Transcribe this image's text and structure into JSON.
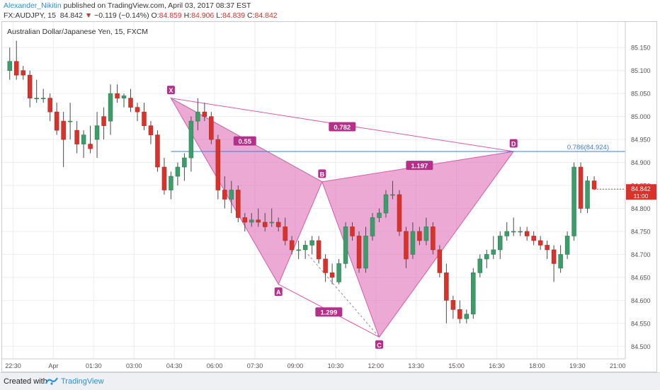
{
  "header": {
    "author": "Alexander_Nikitin",
    "published_text": "published on TradingView.com, April 03, 2017 08:37 EST",
    "symbol_line": "FX:AUDJPY, 15",
    "last_price": "84.842",
    "change": "−0.119 (−0.14%)",
    "open_label": "O:",
    "open": "84.859",
    "high_label": "H:",
    "high": "84.906",
    "low_label": "L:",
    "low": "84.839",
    "close_label": "C:",
    "close": "84.842"
  },
  "footer": {
    "created_with": "Created with",
    "brand": "TradingView"
  },
  "chart_data": {
    "type": "candlestick",
    "title": "Australian Dollar/Japanese Yen, 15, FXCM",
    "ylim": [
      84.485,
      85.175
    ],
    "yticks": [
      "84.500",
      "84.550",
      "84.600",
      "84.650",
      "84.700",
      "84.750",
      "84.800",
      "84.850",
      "84.900",
      "84.950",
      "85.000",
      "85.050",
      "85.100",
      "85.150"
    ],
    "xticks": [
      "22:30",
      "Apr",
      "01:30",
      "03:00",
      "04:30",
      "06:00",
      "07:30",
      "09:00",
      "10:30",
      "12:00",
      "13:30",
      "15:00",
      "16:30",
      "18:00",
      "19:30",
      "21:00"
    ],
    "xlim": [
      -0.5,
      91
    ],
    "candles": [
      {
        "o": 85.1,
        "h": 85.15,
        "l": 85.08,
        "c": 85.12
      },
      {
        "o": 85.12,
        "h": 85.165,
        "l": 85.08,
        "c": 85.09
      },
      {
        "o": 85.1,
        "h": 85.11,
        "l": 85.08,
        "c": 85.09
      },
      {
        "o": 85.09,
        "h": 85.1,
        "l": 85.02,
        "c": 85.04
      },
      {
        "o": 85.04,
        "h": 85.08,
        "l": 85.03,
        "c": 85.04
      },
      {
        "o": 85.04,
        "h": 85.06,
        "l": 85.03,
        "c": 85.04
      },
      {
        "o": 85.04,
        "h": 85.05,
        "l": 84.99,
        "c": 85.01
      },
      {
        "o": 85.01,
        "h": 85.03,
        "l": 84.96,
        "c": 84.97
      },
      {
        "o": 84.99,
        "h": 85.01,
        "l": 84.89,
        "c": 84.95
      },
      {
        "o": 84.99,
        "h": 85.03,
        "l": 84.95,
        "c": 84.99
      },
      {
        "o": 84.97,
        "h": 84.99,
        "l": 84.92,
        "c": 84.94
      },
      {
        "o": 84.94,
        "h": 84.97,
        "l": 84.91,
        "c": 84.96
      },
      {
        "o": 84.94,
        "h": 84.98,
        "l": 84.92,
        "c": 84.93
      },
      {
        "o": 84.95,
        "h": 85.01,
        "l": 84.91,
        "c": 84.98
      },
      {
        "o": 85.0,
        "h": 85.02,
        "l": 84.95,
        "c": 84.98
      },
      {
        "o": 84.99,
        "h": 85.07,
        "l": 84.96,
        "c": 85.05
      },
      {
        "o": 85.05,
        "h": 85.07,
        "l": 85.03,
        "c": 85.04
      },
      {
        "o": 85.04,
        "h": 85.05,
        "l": 85.02,
        "c": 85.045
      },
      {
        "o": 85.04,
        "h": 85.06,
        "l": 85.01,
        "c": 85.02
      },
      {
        "o": 85.02,
        "h": 85.03,
        "l": 84.99,
        "c": 85.01
      },
      {
        "o": 85.01,
        "h": 85.03,
        "l": 84.97,
        "c": 84.98
      },
      {
        "o": 84.98,
        "h": 84.99,
        "l": 84.94,
        "c": 84.96
      },
      {
        "o": 84.96,
        "h": 84.97,
        "l": 84.88,
        "c": 84.89
      },
      {
        "o": 84.89,
        "h": 84.91,
        "l": 84.83,
        "c": 84.84
      },
      {
        "o": 84.84,
        "h": 84.88,
        "l": 84.82,
        "c": 84.87
      },
      {
        "o": 84.87,
        "h": 84.9,
        "l": 84.85,
        "c": 84.89
      },
      {
        "o": 84.89,
        "h": 84.92,
        "l": 84.86,
        "c": 84.91
      },
      {
        "o": 84.91,
        "h": 85.0,
        "l": 84.88,
        "c": 84.99
      },
      {
        "o": 84.99,
        "h": 85.04,
        "l": 84.97,
        "c": 85.01
      },
      {
        "o": 85.01,
        "h": 85.03,
        "l": 84.99,
        "c": 85.0
      },
      {
        "o": 85.0,
        "h": 85.01,
        "l": 84.94,
        "c": 84.95
      },
      {
        "o": 84.95,
        "h": 84.96,
        "l": 84.82,
        "c": 84.84
      },
      {
        "o": 84.84,
        "h": 84.87,
        "l": 84.8,
        "c": 84.82
      },
      {
        "o": 84.82,
        "h": 84.86,
        "l": 84.79,
        "c": 84.84
      },
      {
        "o": 84.84,
        "h": 84.85,
        "l": 84.77,
        "c": 84.78
      },
      {
        "o": 84.78,
        "h": 84.79,
        "l": 84.75,
        "c": 84.77
      },
      {
        "o": 84.77,
        "h": 84.79,
        "l": 84.76,
        "c": 84.775
      },
      {
        "o": 84.775,
        "h": 84.8,
        "l": 84.76,
        "c": 84.77
      },
      {
        "o": 84.77,
        "h": 84.79,
        "l": 84.75,
        "c": 84.76
      },
      {
        "o": 84.77,
        "h": 84.8,
        "l": 84.76,
        "c": 84.77
      },
      {
        "o": 84.77,
        "h": 84.78,
        "l": 84.75,
        "c": 84.76
      },
      {
        "o": 84.76,
        "h": 84.78,
        "l": 84.72,
        "c": 84.73
      },
      {
        "o": 84.73,
        "h": 84.74,
        "l": 84.7,
        "c": 84.71
      },
      {
        "o": 84.71,
        "h": 84.73,
        "l": 84.69,
        "c": 84.71
      },
      {
        "o": 84.71,
        "h": 84.73,
        "l": 84.69,
        "c": 84.72
      },
      {
        "o": 84.72,
        "h": 84.74,
        "l": 84.7,
        "c": 84.73
      },
      {
        "o": 84.73,
        "h": 84.74,
        "l": 84.68,
        "c": 84.69
      },
      {
        "o": 84.69,
        "h": 84.7,
        "l": 84.64,
        "c": 84.66
      },
      {
        "o": 84.66,
        "h": 84.68,
        "l": 84.635,
        "c": 84.65
      },
      {
        "o": 84.64,
        "h": 84.69,
        "l": 84.635,
        "c": 84.68
      },
      {
        "o": 84.68,
        "h": 84.77,
        "l": 84.67,
        "c": 84.76
      },
      {
        "o": 84.76,
        "h": 84.77,
        "l": 84.73,
        "c": 84.74
      },
      {
        "o": 84.74,
        "h": 84.75,
        "l": 84.66,
        "c": 84.67
      },
      {
        "o": 84.67,
        "h": 84.76,
        "l": 84.66,
        "c": 84.74
      },
      {
        "o": 84.74,
        "h": 84.79,
        "l": 84.73,
        "c": 84.78
      },
      {
        "o": 84.78,
        "h": 84.8,
        "l": 84.77,
        "c": 84.79
      },
      {
        "o": 84.79,
        "h": 84.84,
        "l": 84.78,
        "c": 84.83
      },
      {
        "o": 84.83,
        "h": 84.86,
        "l": 84.82,
        "c": 84.83
      },
      {
        "o": 84.83,
        "h": 84.84,
        "l": 84.74,
        "c": 84.75
      },
      {
        "o": 84.75,
        "h": 84.76,
        "l": 84.67,
        "c": 84.69
      },
      {
        "o": 84.7,
        "h": 84.77,
        "l": 84.69,
        "c": 84.75
      },
      {
        "o": 84.75,
        "h": 84.76,
        "l": 84.72,
        "c": 84.73
      },
      {
        "o": 84.73,
        "h": 84.78,
        "l": 84.72,
        "c": 84.76
      },
      {
        "o": 84.76,
        "h": 84.77,
        "l": 84.7,
        "c": 84.71
      },
      {
        "o": 84.71,
        "h": 84.72,
        "l": 84.65,
        "c": 84.66
      },
      {
        "o": 84.66,
        "h": 84.68,
        "l": 84.55,
        "c": 84.6
      },
      {
        "o": 84.6,
        "h": 84.61,
        "l": 84.56,
        "c": 84.58
      },
      {
        "o": 84.58,
        "h": 84.6,
        "l": 84.55,
        "c": 84.56
      },
      {
        "o": 84.56,
        "h": 84.58,
        "l": 84.55,
        "c": 84.57
      },
      {
        "o": 84.57,
        "h": 84.67,
        "l": 84.56,
        "c": 84.66
      },
      {
        "o": 84.66,
        "h": 84.7,
        "l": 84.65,
        "c": 84.69
      },
      {
        "o": 84.69,
        "h": 84.71,
        "l": 84.67,
        "c": 84.7
      },
      {
        "o": 84.7,
        "h": 84.74,
        "l": 84.69,
        "c": 84.71
      },
      {
        "o": 84.71,
        "h": 84.75,
        "l": 84.69,
        "c": 84.74
      },
      {
        "o": 84.74,
        "h": 84.77,
        "l": 84.73,
        "c": 84.75
      },
      {
        "o": 84.75,
        "h": 84.78,
        "l": 84.74,
        "c": 84.75
      },
      {
        "o": 84.75,
        "h": 84.76,
        "l": 84.74,
        "c": 84.75
      },
      {
        "o": 84.75,
        "h": 84.76,
        "l": 84.73,
        "c": 84.74
      },
      {
        "o": 84.74,
        "h": 84.75,
        "l": 84.72,
        "c": 84.73
      },
      {
        "o": 84.73,
        "h": 84.74,
        "l": 84.71,
        "c": 84.72
      },
      {
        "o": 84.72,
        "h": 84.73,
        "l": 84.69,
        "c": 84.71
      },
      {
        "o": 84.71,
        "h": 84.72,
        "l": 84.64,
        "c": 84.68
      },
      {
        "o": 84.67,
        "h": 84.72,
        "l": 84.66,
        "c": 84.7
      },
      {
        "o": 84.7,
        "h": 84.75,
        "l": 84.69,
        "c": 84.74
      },
      {
        "o": 84.74,
        "h": 84.9,
        "l": 84.73,
        "c": 84.89
      },
      {
        "o": 84.89,
        "h": 84.9,
        "l": 84.79,
        "c": 84.8
      },
      {
        "o": 84.8,
        "h": 84.87,
        "l": 84.79,
        "c": 84.86
      },
      {
        "o": 84.86,
        "h": 84.87,
        "l": 84.84,
        "c": 84.842
      }
    ],
    "pattern": {
      "points": [
        {
          "name": "X",
          "x": 24.0,
          "y": 85.04
        },
        {
          "name": "A",
          "x": 40.0,
          "y": 84.635
        },
        {
          "name": "B",
          "x": 46.5,
          "y": 84.858
        },
        {
          "name": "C",
          "x": 55.0,
          "y": 84.52
        },
        {
          "name": "D",
          "x": 75.0,
          "y": 84.924
        }
      ],
      "ratios": [
        {
          "label": "0.55",
          "x": 35.0,
          "y": 84.946
        },
        {
          "label": "0.782",
          "x": 49.5,
          "y": 84.977
        },
        {
          "label": "1.197",
          "x": 61.0,
          "y": 84.893
        },
        {
          "label": "1.299",
          "x": 47.5,
          "y": 84.574
        }
      ],
      "fill": "#e070b8",
      "stroke": "#d85aa8"
    },
    "level": {
      "label": "0.786(84.924)",
      "value": 84.924,
      "color": "#3d7fd6"
    },
    "price_tag": {
      "price": "84.842",
      "countdown": "11:00",
      "color": "#d9322b"
    },
    "colors": {
      "up": "#3c9d6a",
      "down": "#d9322b"
    }
  }
}
